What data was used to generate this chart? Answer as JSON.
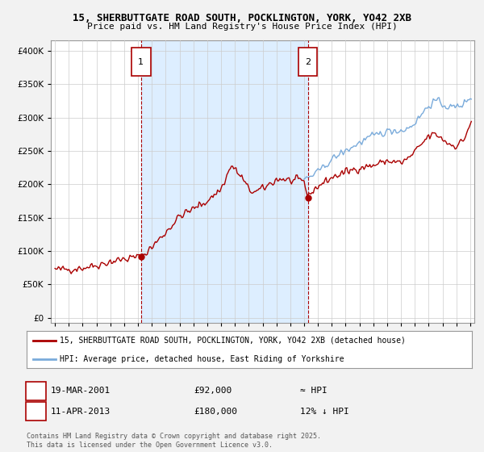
{
  "title1": "15, SHERBUTTGATE ROAD SOUTH, POCKLINGTON, YORK, YO42 2XB",
  "title2": "Price paid vs. HM Land Registry's House Price Index (HPI)",
  "bg_color": "#f2f2f2",
  "plot_bg": "#ffffff",
  "red_color": "#aa0000",
  "blue_color": "#7aabdb",
  "shade_color": "#ddeeff",
  "marker1_x": 2001.21,
  "marker1_y": 92000,
  "marker2_x": 2013.27,
  "marker2_y": 180000,
  "yticks": [
    0,
    50000,
    100000,
    150000,
    200000,
    250000,
    300000,
    350000,
    400000
  ],
  "ytick_labels": [
    "£0",
    "£50K",
    "£100K",
    "£150K",
    "£200K",
    "£250K",
    "£300K",
    "£350K",
    "£400K"
  ],
  "xmin": 1994.7,
  "xmax": 2025.3,
  "ymin": -8000,
  "ymax": 415000,
  "legend_line1": "15, SHERBUTTGATE ROAD SOUTH, POCKLINGTON, YORK, YO42 2XB (detached house)",
  "legend_line2": "HPI: Average price, detached house, East Riding of Yorkshire",
  "ann1_label": "1",
  "ann1_date": "19-MAR-2001",
  "ann1_price": "£92,000",
  "ann1_hpi": "≈ HPI",
  "ann2_label": "2",
  "ann2_date": "11-APR-2013",
  "ann2_price": "£180,000",
  "ann2_hpi": "12% ↓ HPI",
  "footer": "Contains HM Land Registry data © Crown copyright and database right 2025.\nThis data is licensed under the Open Government Licence v3.0."
}
